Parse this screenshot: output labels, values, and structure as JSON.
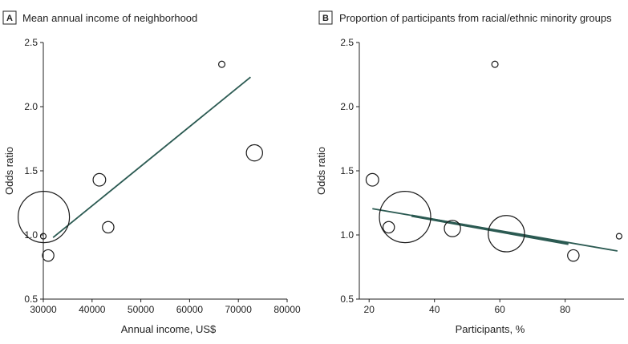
{
  "chart_data": [
    {
      "type": "scatter",
      "panel_letter": "A",
      "title": "Mean annual income of neighborhood",
      "xlabel": "Annual income, US$",
      "ylabel": "Odds ratio",
      "xlim": [
        30000,
        80000
      ],
      "ylim": [
        0.5,
        2.5
      ],
      "xticks": [
        30000,
        40000,
        50000,
        60000,
        70000,
        80000
      ],
      "xtick_labels": [
        "30000",
        "40000",
        "50000",
        "60000",
        "70000",
        "80000"
      ],
      "yticks": [
        0.5,
        1.0,
        1.5,
        2.0,
        2.5
      ],
      "ytick_labels": [
        "0.5",
        "1.0",
        "1.5",
        "2.0",
        "2.5"
      ],
      "points": [
        {
          "x": 30100,
          "y": 1.14,
          "weight": 100
        },
        {
          "x": 30000,
          "y": 0.99,
          "weight": 1
        },
        {
          "x": 31000,
          "y": 0.84,
          "weight": 5
        },
        {
          "x": 41500,
          "y": 1.43,
          "weight": 6
        },
        {
          "x": 43300,
          "y": 1.06,
          "weight": 5
        },
        {
          "x": 66600,
          "y": 2.33,
          "weight": 1.5
        },
        {
          "x": 73300,
          "y": 1.64,
          "weight": 10
        }
      ],
      "fit_line": {
        "x": [
          32000,
          72500
        ],
        "y": [
          0.98,
          2.23
        ]
      }
    },
    {
      "type": "scatter",
      "panel_letter": "B",
      "title": "Proportion of participants from racial/ethnic minority groups",
      "xlabel": "Participants, %",
      "ylabel": "Odds ratio",
      "xlim": [
        17,
        98
      ],
      "ylim": [
        0.5,
        2.5
      ],
      "xticks": [
        20,
        40,
        60,
        80
      ],
      "xtick_labels": [
        "20",
        "40",
        "60",
        "80"
      ],
      "yticks": [
        0.5,
        1.0,
        1.5,
        2.0,
        2.5
      ],
      "ytick_labels": [
        "0.5",
        "1.0",
        "1.5",
        "2.0",
        "2.5"
      ],
      "points": [
        {
          "x": 21,
          "y": 1.43,
          "weight": 6
        },
        {
          "x": 26,
          "y": 1.06,
          "weight": 5
        },
        {
          "x": 31,
          "y": 1.14,
          "weight": 100
        },
        {
          "x": 45.5,
          "y": 1.05,
          "weight": 10
        },
        {
          "x": 58.5,
          "y": 2.33,
          "weight": 1.5
        },
        {
          "x": 62,
          "y": 1.01,
          "weight": 50
        },
        {
          "x": 82.5,
          "y": 0.84,
          "weight": 5
        },
        {
          "x": 96.5,
          "y": 0.99,
          "weight": 1
        }
      ],
      "fit_lines": [
        {
          "x": [
            21,
            96
          ],
          "y": [
            1.205,
            0.875
          ],
          "width": 1.8
        },
        {
          "x": [
            33,
            81
          ],
          "y": [
            1.15,
            0.93
          ],
          "width": 3
        }
      ]
    }
  ]
}
